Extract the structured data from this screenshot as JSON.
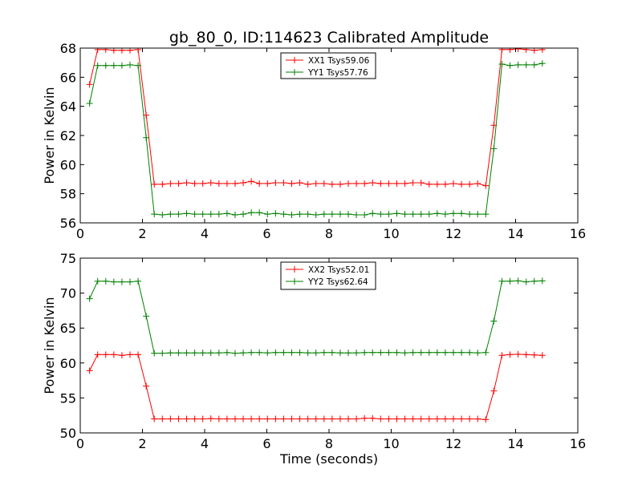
{
  "figure": {
    "title": "gb_80_0, ID:114623 Calibrated Amplitude"
  },
  "chart_data": [
    {
      "type": "line",
      "title": "gb_80_0, ID:114623 Calibrated Amplitude",
      "xlabel": "",
      "ylabel": "Power in Kelvin",
      "xlim": [
        0,
        16
      ],
      "ylim": [
        56,
        68
      ],
      "xticks": [
        0,
        2,
        4,
        6,
        8,
        10,
        12,
        14,
        16
      ],
      "yticks": [
        56,
        58,
        60,
        62,
        64,
        66,
        68
      ],
      "marker": "+",
      "grid": false,
      "legend_position": "top-center",
      "x": [
        0.3,
        0.56,
        0.82,
        1.08,
        1.34,
        1.6,
        1.86,
        2.12,
        2.38,
        2.64,
        2.9,
        3.16,
        3.42,
        3.68,
        3.94,
        4.2,
        4.46,
        4.72,
        4.98,
        5.24,
        5.5,
        5.76,
        6.02,
        6.28,
        6.54,
        6.8,
        7.06,
        7.32,
        7.58,
        7.84,
        8.1,
        8.36,
        8.62,
        8.88,
        9.14,
        9.4,
        9.66,
        9.92,
        10.18,
        10.44,
        10.7,
        10.96,
        11.22,
        11.48,
        11.74,
        12.0,
        12.26,
        12.52,
        12.78,
        13.04,
        13.3,
        13.56,
        13.82,
        14.08,
        14.34,
        14.6,
        14.86
      ],
      "series": [
        {
          "name": "XX1 Tsys59.06",
          "color": "#ff0000",
          "values": [
            65.5,
            67.9,
            67.9,
            67.85,
            67.85,
            67.85,
            67.9,
            63.4,
            58.65,
            58.65,
            58.7,
            58.7,
            58.75,
            58.7,
            58.7,
            58.75,
            58.7,
            58.7,
            58.7,
            58.75,
            58.85,
            58.7,
            58.7,
            58.75,
            58.75,
            58.7,
            58.75,
            58.65,
            58.7,
            58.7,
            58.65,
            58.65,
            58.7,
            58.7,
            58.7,
            58.75,
            58.7,
            58.7,
            58.7,
            58.7,
            58.75,
            58.75,
            58.65,
            58.65,
            58.65,
            58.7,
            58.65,
            58.65,
            58.7,
            58.55,
            62.7,
            67.9,
            67.9,
            67.95,
            67.9,
            67.85,
            67.9
          ]
        },
        {
          "name": "YY1 Tsys57.76",
          "color": "#008000",
          "values": [
            64.2,
            66.8,
            66.8,
            66.8,
            66.8,
            66.85,
            66.8,
            61.85,
            56.6,
            56.55,
            56.6,
            56.6,
            56.65,
            56.6,
            56.6,
            56.6,
            56.6,
            56.65,
            56.55,
            56.6,
            56.7,
            56.7,
            56.6,
            56.65,
            56.6,
            56.55,
            56.6,
            56.6,
            56.55,
            56.6,
            56.6,
            56.6,
            56.6,
            56.55,
            56.55,
            56.65,
            56.6,
            56.6,
            56.65,
            56.6,
            56.6,
            56.6,
            56.6,
            56.65,
            56.6,
            56.65,
            56.65,
            56.6,
            56.6,
            56.6,
            61.1,
            66.9,
            66.8,
            66.85,
            66.85,
            66.85,
            66.95
          ]
        }
      ]
    },
    {
      "type": "line",
      "title": "",
      "xlabel": "Time (seconds)",
      "ylabel": "Power in Kelvin",
      "xlim": [
        0,
        16
      ],
      "ylim": [
        50,
        75
      ],
      "xticks": [
        0,
        2,
        4,
        6,
        8,
        10,
        12,
        14,
        16
      ],
      "yticks": [
        50,
        55,
        60,
        65,
        70,
        75
      ],
      "marker": "+",
      "grid": false,
      "legend_position": "top-center",
      "x": [
        0.3,
        0.56,
        0.82,
        1.08,
        1.34,
        1.6,
        1.86,
        2.12,
        2.38,
        2.64,
        2.9,
        3.16,
        3.42,
        3.68,
        3.94,
        4.2,
        4.46,
        4.72,
        4.98,
        5.24,
        5.5,
        5.76,
        6.02,
        6.28,
        6.54,
        6.8,
        7.06,
        7.32,
        7.58,
        7.84,
        8.1,
        8.36,
        8.62,
        8.88,
        9.14,
        9.4,
        9.66,
        9.92,
        10.18,
        10.44,
        10.7,
        10.96,
        11.22,
        11.48,
        11.74,
        12.0,
        12.26,
        12.52,
        12.78,
        13.04,
        13.3,
        13.56,
        13.82,
        14.08,
        14.34,
        14.6,
        14.86
      ],
      "series": [
        {
          "name": "XX2 Tsys52.01",
          "color": "#ff0000",
          "values": [
            58.9,
            61.2,
            61.2,
            61.2,
            61.1,
            61.2,
            61.2,
            56.7,
            52.0,
            52.0,
            52.0,
            52.0,
            52.0,
            52.0,
            52.0,
            52.05,
            52.0,
            52.0,
            52.0,
            52.0,
            52.0,
            52.0,
            52.0,
            52.0,
            52.0,
            52.0,
            52.0,
            52.0,
            52.0,
            52.0,
            52.0,
            52.0,
            52.0,
            52.0,
            52.1,
            52.1,
            52.0,
            52.0,
            52.0,
            52.0,
            52.0,
            52.0,
            52.0,
            52.0,
            52.0,
            52.0,
            52.0,
            52.0,
            52.0,
            51.9,
            56.0,
            61.1,
            61.2,
            61.25,
            61.2,
            61.15,
            61.1
          ]
        },
        {
          "name": "YY2 Tsys62.64",
          "color": "#008000",
          "values": [
            69.2,
            71.7,
            71.7,
            71.6,
            71.6,
            71.6,
            71.7,
            66.7,
            61.4,
            61.4,
            61.45,
            61.45,
            61.45,
            61.45,
            61.45,
            61.45,
            61.45,
            61.5,
            61.4,
            61.45,
            61.5,
            61.5,
            61.45,
            61.5,
            61.5,
            61.5,
            61.5,
            61.45,
            61.45,
            61.5,
            61.5,
            61.45,
            61.45,
            61.45,
            61.5,
            61.5,
            61.5,
            61.5,
            61.5,
            61.45,
            61.5,
            61.5,
            61.5,
            61.5,
            61.5,
            61.5,
            61.5,
            61.5,
            61.45,
            61.5,
            66.0,
            71.7,
            71.7,
            71.75,
            71.6,
            71.7,
            71.75
          ]
        }
      ]
    }
  ]
}
